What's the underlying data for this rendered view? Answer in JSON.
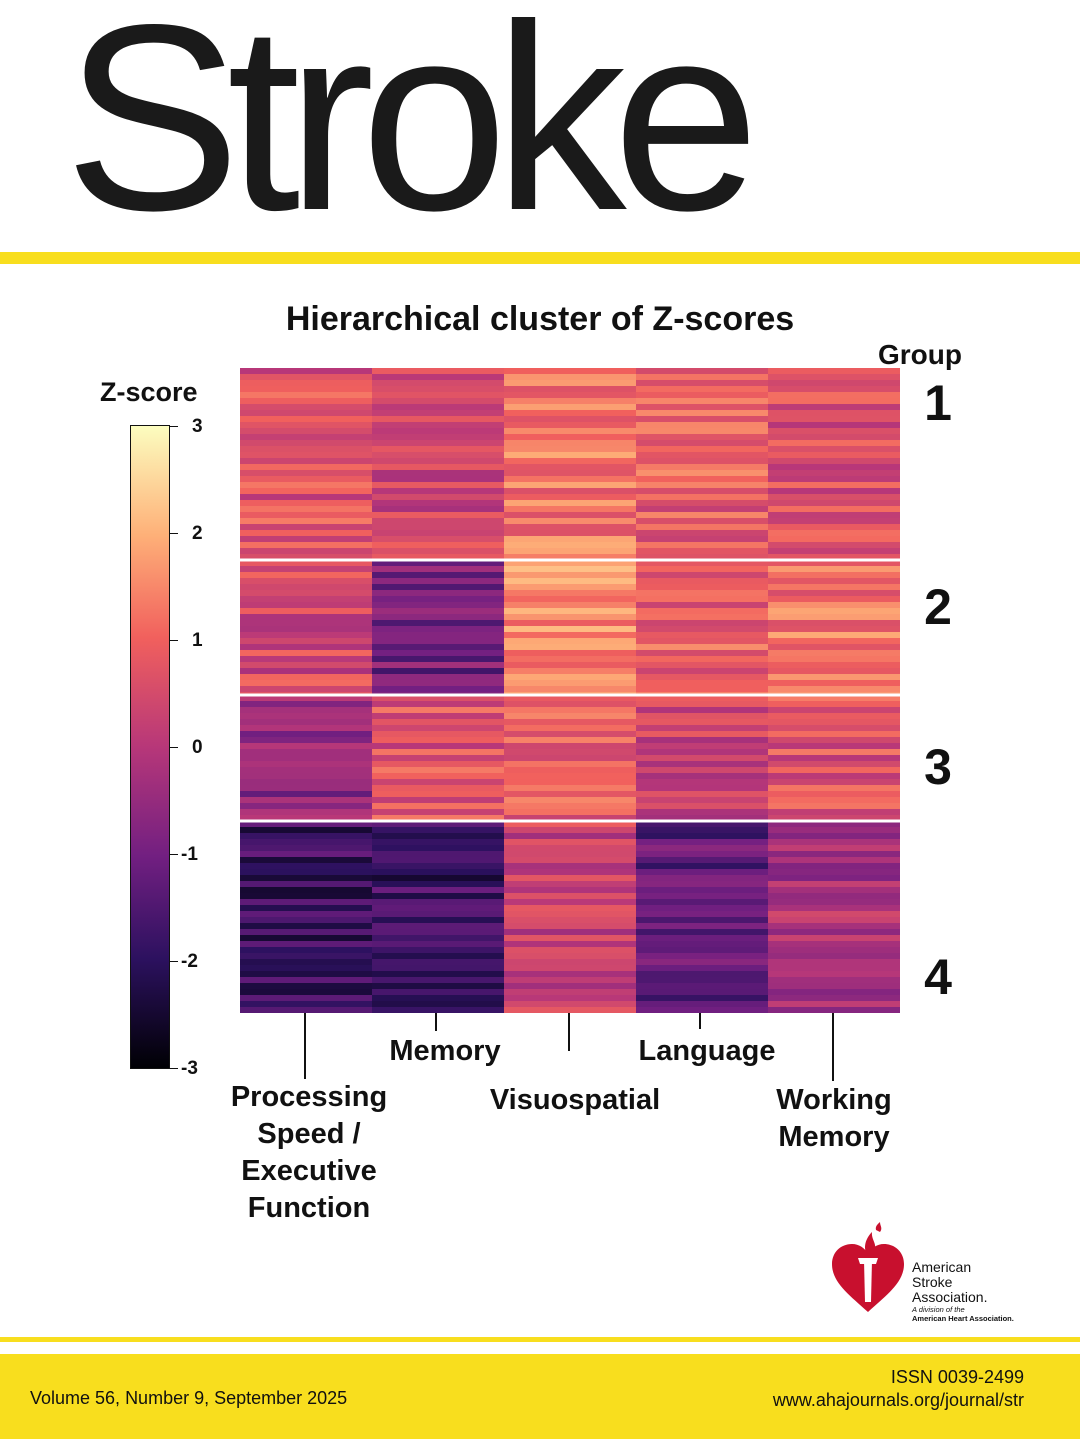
{
  "journal": {
    "title": "Stroke",
    "issue": "Volume 56, Number 9, September 2025",
    "issn": "ISSN 0039-2499",
    "url": "www.ahajournals.org/journal/str"
  },
  "publisher": {
    "name_line1": "American",
    "name_line2": "Stroke",
    "name_line3": "Association.",
    "division": "A division of the",
    "parent": "American Heart Association."
  },
  "colors": {
    "band": "#f8de1e",
    "logo_red": "#c8102e",
    "text": "#111111"
  },
  "chart_data": {
    "type": "heatmap",
    "title": "Hierarchical cluster of Z-scores",
    "colorbar": {
      "label": "Z-score",
      "range": [
        -3,
        3
      ],
      "ticks": [
        "3",
        "2",
        "1",
        "0",
        "-1",
        "-2",
        "-3"
      ],
      "colormap": "magma"
    },
    "row_group_label": "Group",
    "groups": [
      "1",
      "2",
      "3",
      "4"
    ],
    "columns": [
      "Processing Speed / Executive Function",
      "Memory",
      "Visuospatial",
      "Language",
      "Working Memory"
    ],
    "column_label_lines": [
      [
        "Processing",
        "Speed /",
        "Executive",
        "Function"
      ],
      [
        "Memory"
      ],
      [
        "Visuospatial"
      ],
      [
        "Language"
      ],
      [
        "Working",
        "Memory"
      ]
    ],
    "group_means": {
      "1": [
        0.7,
        0.3,
        1.3,
        0.9,
        0.6
      ],
      "2": [
        0.5,
        -1.0,
        1.5,
        0.9,
        1.2
      ],
      "3": [
        -0.6,
        0.7,
        0.9,
        0.3,
        0.7
      ],
      "4": [
        -1.8,
        -1.8,
        0.3,
        -1.3,
        -0.2
      ]
    }
  }
}
